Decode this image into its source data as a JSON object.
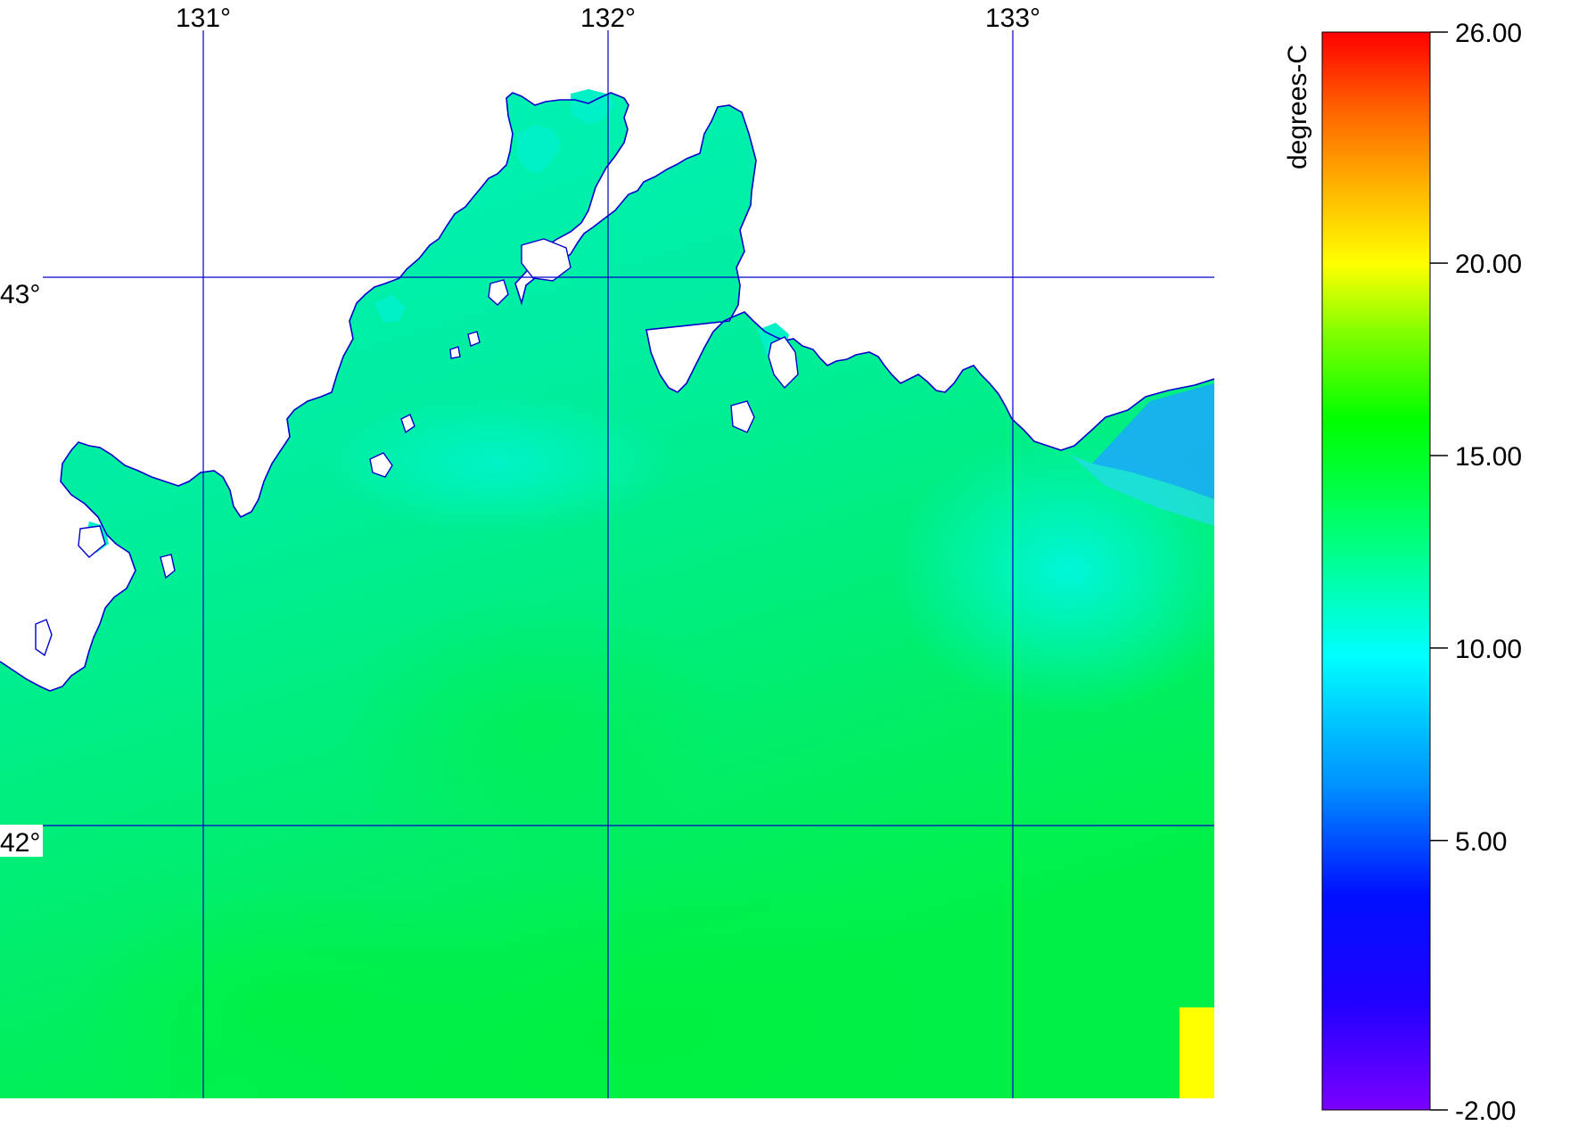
{
  "map": {
    "lon_labels": [
      "131°",
      "132°",
      "133°"
    ],
    "lat_labels": [
      "43°",
      "42°"
    ],
    "grid_color": "#0000cc",
    "coast_color": "#0000cc",
    "land_color": "#ffffff",
    "field_colors": {
      "cyan_green": "#00f2c8",
      "aqua_green": "#00ee9a",
      "green": "#00f050",
      "cold": "#1aa8ff",
      "nodata": "#ffff00"
    }
  },
  "colorbar": {
    "title": "degrees-C",
    "min": -2.0,
    "max": 26.0,
    "ticks": [
      {
        "value": 26,
        "label": "26.00"
      },
      {
        "value": 20,
        "label": "20.00"
      },
      {
        "value": 15,
        "label": "15.00"
      },
      {
        "value": 10,
        "label": "10.00"
      },
      {
        "value": 5,
        "label": "5.00"
      },
      {
        "value": -2,
        "label": "-2.00"
      }
    ],
    "colors": [
      "#7a00ff",
      "#0000ff",
      "#00a0ff",
      "#00ffff",
      "#00ff80",
      "#00ff00",
      "#a8ff00",
      "#ffff00",
      "#ffb000",
      "#ff6000",
      "#ff0000"
    ]
  }
}
